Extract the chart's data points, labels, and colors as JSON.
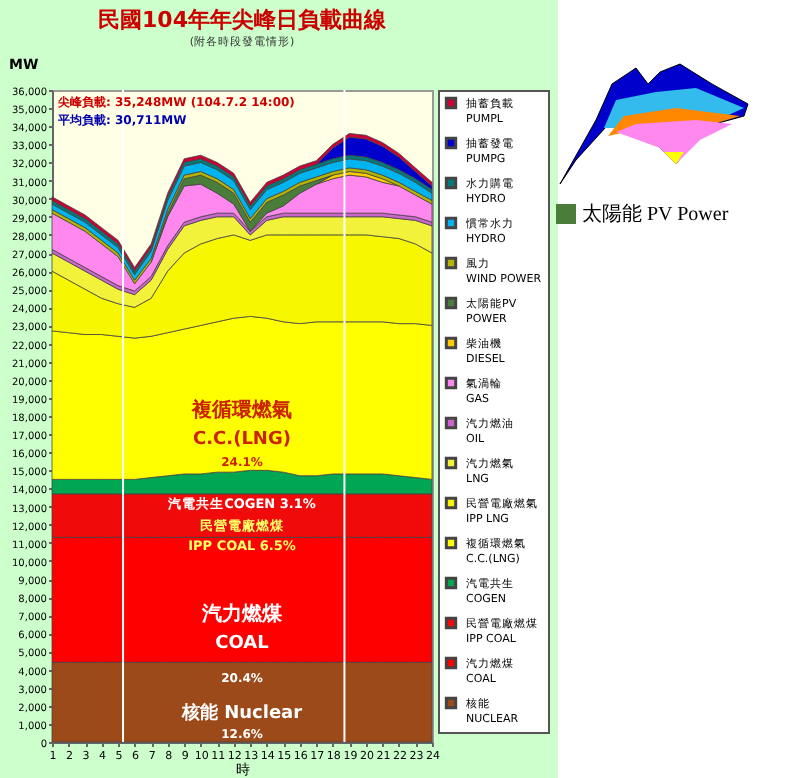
{
  "chart_data": {
    "type": "area",
    "stacked": true,
    "title": "民國104年年尖峰日負載曲線",
    "subtitle": "(附各時段發電情形)",
    "xlabel": "時",
    "ylabel": "MW",
    "x": [
      1,
      2,
      3,
      4,
      5,
      6,
      7,
      8,
      9,
      10,
      11,
      12,
      13,
      14,
      15,
      16,
      17,
      18,
      19,
      20,
      21,
      22,
      23,
      24
    ],
    "xlim": [
      1,
      24
    ],
    "xticks": [
      1,
      2,
      3,
      4,
      5,
      6,
      7,
      8,
      9,
      10,
      11,
      12,
      13,
      14,
      15,
      16,
      17,
      18,
      19,
      20,
      21,
      22,
      23,
      24
    ],
    "ylim": [
      0,
      36000
    ],
    "yticks": [
      0,
      {
        "value": 1000,
        "label": "1,000"
      },
      {
        "value": 2000,
        "label": "2,000"
      },
      {
        "value": 3000,
        "label": "3,000"
      },
      {
        "value": 4000,
        "label": "4,000"
      },
      {
        "value": 5000,
        "label": "5,000"
      },
      {
        "value": 6000,
        "label": "6,000"
      },
      {
        "value": 7000,
        "label": "7,000"
      },
      {
        "value": 8000,
        "label": "8,000"
      },
      {
        "value": 9000,
        "label": "9,000"
      },
      {
        "value": 10000,
        "label": "10,000"
      },
      {
        "value": 11000,
        "label": "11,000"
      },
      {
        "value": 12000,
        "label": "12,000"
      },
      {
        "value": 13000,
        "label": "13,000"
      },
      {
        "value": 14000,
        "label": "14,000"
      },
      {
        "value": 15000,
        "label": "15,000"
      },
      {
        "value": 16000,
        "label": "16,000"
      },
      {
        "value": 17000,
        "label": "17,000"
      },
      {
        "value": 18000,
        "label": "18,000"
      },
      {
        "value": 19000,
        "label": "19,000"
      },
      {
        "value": 20000,
        "label": "20,000"
      },
      {
        "value": 21000,
        "label": "21,000"
      },
      {
        "value": 22000,
        "label": "22,000"
      },
      {
        "value": 23000,
        "label": "23,000"
      },
      {
        "value": 24000,
        "label": "24,000"
      },
      {
        "value": 25000,
        "label": "25,000"
      },
      {
        "value": 26000,
        "label": "26,000"
      },
      {
        "value": 27000,
        "label": "27,000"
      },
      {
        "value": 28000,
        "label": "28,000"
      },
      {
        "value": 29000,
        "label": "29,000"
      },
      {
        "value": 30000,
        "label": "30,000"
      },
      {
        "value": 31000,
        "label": "31,000"
      },
      {
        "value": 32000,
        "label": "32,000"
      },
      {
        "value": 33000,
        "label": "33,000"
      },
      {
        "value": 34000,
        "label": "34,000"
      },
      {
        "value": 35000,
        "label": "35,000"
      },
      {
        "value": 36000,
        "label": "36,000"
      }
    ],
    "legend": "right",
    "series": [
      {
        "name": "核能 NUCLEAR",
        "color": "#9c4a1a",
        "values": [
          4400,
          4400,
          4400,
          4400,
          4400,
          4400,
          4400,
          4400,
          4400,
          4400,
          4400,
          4400,
          4400,
          4400,
          4400,
          4400,
          4400,
          4400,
          4400,
          4400,
          4400,
          4400,
          4400,
          4400
        ]
      },
      {
        "name": "汽力燃煤 COAL",
        "color": "#ff0000",
        "values": [
          6900,
          6900,
          6900,
          6900,
          6900,
          6900,
          6900,
          6900,
          6900,
          6900,
          6900,
          6900,
          6900,
          6900,
          6900,
          6900,
          6900,
          6900,
          6900,
          6900,
          6900,
          6900,
          6900,
          6900
        ]
      },
      {
        "name": "民營電廠燃煤 IPP COAL",
        "color": "#f00a0a",
        "values": [
          2400,
          2400,
          2400,
          2400,
          2400,
          2400,
          2400,
          2400,
          2400,
          2400,
          2400,
          2400,
          2400,
          2400,
          2400,
          2400,
          2400,
          2400,
          2400,
          2400,
          2400,
          2400,
          2400,
          2400
        ]
      },
      {
        "name": "汽電共生 COGEN",
        "color": "#00a651",
        "values": [
          800,
          800,
          800,
          800,
          800,
          800,
          900,
          1000,
          1100,
          1100,
          1200,
          1200,
          1300,
          1300,
          1200,
          1000,
          1000,
          1100,
          1100,
          1100,
          1100,
          1000,
          900,
          800
        ]
      },
      {
        "name": "複循環燃氣 C.C.(LNG)",
        "color": "#ffff00",
        "values": [
          8200,
          8100,
          8000,
          8000,
          7900,
          7800,
          7800,
          7900,
          8000,
          8200,
          8300,
          8500,
          8500,
          8400,
          8300,
          8400,
          8500,
          8400,
          8400,
          8400,
          8400,
          8400,
          8500,
          8500
        ]
      },
      {
        "name": "民營電廠燃氣 IPP LNG",
        "color": "#f7f700",
        "values": [
          3300,
          2900,
          2500,
          2000,
          1800,
          1700,
          2100,
          3400,
          4200,
          4500,
          4600,
          4600,
          4200,
          4600,
          4800,
          4900,
          4800,
          4800,
          4800,
          4800,
          4700,
          4700,
          4400,
          4000
        ]
      },
      {
        "name": "汽力燃氣 LNG",
        "color": "#f2f23a",
        "values": [
          1000,
          1000,
          1000,
          1000,
          800,
          700,
          1000,
          1200,
          1500,
          1300,
          1200,
          1000,
          300,
          800,
          1000,
          1000,
          1000,
          1000,
          1000,
          1000,
          1100,
          1100,
          1300,
          1500
        ]
      },
      {
        "name": "汽力燃油 OIL",
        "color": "#cc66cc",
        "values": [
          200,
          200,
          200,
          200,
          200,
          200,
          200,
          200,
          200,
          200,
          200,
          200,
          200,
          200,
          200,
          200,
          200,
          200,
          200,
          200,
          200,
          200,
          200,
          200
        ]
      },
      {
        "name": "氣渦輪 GAS",
        "color": "#ff88ee",
        "values": [
          2000,
          2000,
          2000,
          1800,
          1600,
          400,
          800,
          1600,
          2000,
          1800,
          1100,
          500,
          0,
          200,
          400,
          1100,
          1600,
          1900,
          2100,
          2000,
          1700,
          1600,
          1200,
          1000
        ]
      },
      {
        "name": "柴油機 DIESEL",
        "color": "#ffcc00",
        "values": [
          null,
          null,
          null,
          null,
          null,
          null,
          null,
          null,
          null,
          null,
          null,
          null,
          null,
          null,
          null,
          null,
          0,
          200,
          200,
          200,
          200,
          0,
          null,
          null
        ]
      },
      {
        "name": "太陽能PV POWER",
        "color": "#4a7d3a",
        "values": [
          null,
          null,
          null,
          null,
          null,
          null,
          0,
          200,
          400,
          500,
          600,
          600,
          500,
          600,
          600,
          400,
          200,
          0,
          null,
          null,
          null,
          null,
          null,
          null
        ]
      },
      {
        "name": "風力 WIND POWER",
        "color": "#b5b500",
        "values": [
          200,
          200,
          200,
          200,
          200,
          200,
          200,
          200,
          200,
          200,
          200,
          200,
          200,
          200,
          200,
          200,
          200,
          200,
          200,
          200,
          200,
          200,
          200,
          200
        ]
      },
      {
        "name": "慣常水力 HYDRO",
        "color": "#00b4f0",
        "values": [
          300,
          300,
          300,
          300,
          300,
          300,
          400,
          500,
          500,
          500,
          500,
          500,
          500,
          500,
          500,
          500,
          500,
          500,
          500,
          500,
          500,
          500,
          500,
          400
        ]
      },
      {
        "name": "水力購電 HYDRO",
        "color": "#007a7a",
        "values": [
          200,
          200,
          200,
          200,
          200,
          200,
          200,
          200,
          200,
          200,
          200,
          200,
          200,
          200,
          200,
          200,
          200,
          200,
          200,
          200,
          200,
          200,
          200,
          200
        ]
      },
      {
        "name": "抽蓄發電 PUMPG",
        "color": "#0000cc",
        "values": [
          null,
          null,
          null,
          null,
          null,
          null,
          null,
          null,
          null,
          null,
          null,
          null,
          null,
          null,
          null,
          null,
          0,
          600,
          1000,
          1000,
          900,
          700,
          400,
          200
        ]
      },
      {
        "name": "抽蓄負載 PUMPL",
        "color": "#cc0033",
        "values": [
          200,
          200,
          200,
          200,
          200,
          200,
          200,
          200,
          200,
          200,
          200,
          200,
          200,
          200,
          200,
          200,
          200,
          200,
          200,
          200,
          200,
          200,
          200,
          200
        ]
      }
    ],
    "ref_lines": [
      {
        "axis": "x",
        "value": 5.3,
        "color": "#ffffff"
      },
      {
        "axis": "x",
        "value": 18.7,
        "color": "#ffffff"
      }
    ],
    "annotations": [
      "尖峰負載: 35,248MW (104.7.2 14:00)",
      "平均負載: 30,711MW",
      "太陽能  PV Power",
      "複循環燃氣",
      "C.C.(LNG)",
      "24.1%",
      "汽電共生COGEN 3.1%",
      "民營電廠燃煤",
      "IPP COAL 6.5%",
      "汽力燃煤",
      "COAL",
      "20.4%",
      "核能 Nuclear",
      "12.6%"
    ]
  }
}
